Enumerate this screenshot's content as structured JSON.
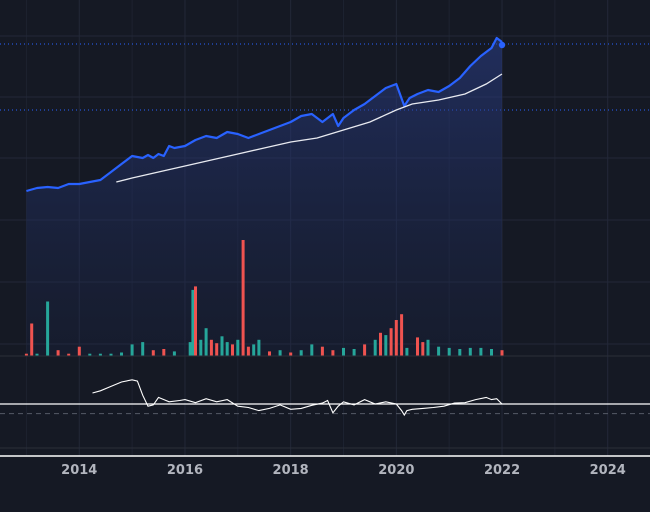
{
  "colors": {
    "background": "#151924",
    "grid": "#232838",
    "price_line": "#2962ff",
    "price_fill_top": "#2b3f8c",
    "moving_average": "#e8eaf0",
    "volume_up": "#26a69a",
    "volume_down": "#ef5350",
    "oscillator": "#ffffff",
    "axis_text": "#b2b5be"
  },
  "chart_data": {
    "type": "line",
    "x_axis": {
      "ticks": [
        "2014",
        "2016",
        "2018",
        "2020",
        "2022",
        "2024"
      ],
      "range": [
        2012.5,
        2024.8
      ]
    },
    "grid": true,
    "legend": "none",
    "price": {
      "range": [
        0,
        100
      ],
      "reference_levels": [
        93,
        60
      ],
      "x": [
        2013.0,
        2013.2,
        2013.4,
        2013.6,
        2013.8,
        2014.0,
        2014.2,
        2014.4,
        2014.6,
        2014.8,
        2015.0,
        2015.2,
        2015.3,
        2015.4,
        2015.5,
        2015.6,
        2015.7,
        2015.8,
        2016.0,
        2016.2,
        2016.4,
        2016.6,
        2016.8,
        2017.0,
        2017.2,
        2017.4,
        2017.6,
        2017.8,
        2018.0,
        2018.2,
        2018.4,
        2018.6,
        2018.8,
        2018.9,
        2019.0,
        2019.2,
        2019.4,
        2019.6,
        2019.8,
        2020.0,
        2020.15,
        2020.25,
        2020.4,
        2020.6,
        2020.8,
        2021.0,
        2021.2,
        2021.4,
        2021.6,
        2021.8,
        2021.9,
        2022.0
      ],
      "values": [
        19.5,
        21,
        21.5,
        21,
        23,
        23,
        24,
        25,
        29,
        33,
        37,
        36,
        37.5,
        36,
        38,
        37,
        42,
        41,
        42,
        45,
        47,
        46,
        49,
        48,
        46,
        48,
        50,
        52,
        54,
        57,
        58,
        54,
        58,
        52,
        56,
        60,
        63,
        67,
        71,
        73,
        62,
        66,
        68,
        70,
        69,
        72,
        76,
        82,
        87,
        91,
        96,
        94
      ]
    },
    "moving_average": {
      "x": [
        2014.7,
        2015.0,
        2015.5,
        2016.0,
        2016.5,
        2017.0,
        2017.5,
        2018.0,
        2018.5,
        2019.0,
        2019.5,
        2020.0,
        2020.3,
        2020.8,
        2021.3,
        2021.7,
        2022.0
      ],
      "values": [
        24,
        26,
        29,
        32,
        35,
        38,
        41,
        44,
        46,
        50,
        54,
        60,
        63,
        65,
        68,
        73,
        78
      ]
    },
    "volume": {
      "range": [
        0,
        100
      ],
      "x": [
        2013.0,
        2013.1,
        2013.2,
        2013.4,
        2013.6,
        2013.8,
        2014.0,
        2014.2,
        2014.4,
        2014.6,
        2014.8,
        2015.0,
        2015.2,
        2015.4,
        2015.6,
        2015.8,
        2016.1,
        2016.15,
        2016.2,
        2016.3,
        2016.4,
        2016.5,
        2016.6,
        2016.7,
        2016.8,
        2016.9,
        2017.0,
        2017.1,
        2017.2,
        2017.3,
        2017.4,
        2017.6,
        2017.8,
        2018.0,
        2018.2,
        2018.4,
        2018.6,
        2018.8,
        2019.0,
        2019.2,
        2019.4,
        2019.6,
        2019.7,
        2019.8,
        2019.9,
        2020.0,
        2020.1,
        2020.2,
        2020.4,
        2020.5,
        2020.6,
        2020.8,
        2021.0,
        2021.2,
        2021.4,
        2021.6,
        2021.8,
        2022.0
      ],
      "values": [
        2,
        28,
        2,
        47,
        5,
        2,
        8,
        2,
        2,
        2,
        3,
        10,
        12,
        5,
        6,
        4,
        12,
        57,
        60,
        14,
        24,
        14,
        11,
        17,
        12,
        10,
        14,
        100,
        8,
        10,
        14,
        4,
        5,
        3,
        5,
        10,
        8,
        5,
        7,
        6,
        10,
        14,
        20,
        18,
        24,
        31,
        36,
        7,
        16,
        12,
        14,
        8,
        7,
        6,
        7,
        7,
        6,
        5
      ],
      "direction": [
        "down",
        "down",
        "up",
        "up",
        "down",
        "down",
        "down",
        "up",
        "up",
        "up",
        "up",
        "up",
        "up",
        "down",
        "down",
        "up",
        "up",
        "up",
        "down",
        "up",
        "up",
        "down",
        "down",
        "up",
        "up",
        "down",
        "up",
        "down",
        "down",
        "up",
        "up",
        "down",
        "up",
        "down",
        "up",
        "up",
        "down",
        "down",
        "up",
        "up",
        "down",
        "up",
        "down",
        "up",
        "down",
        "down",
        "down",
        "up",
        "down",
        "down",
        "up",
        "up",
        "up",
        "up",
        "up",
        "up",
        "up",
        "down"
      ]
    },
    "oscillator": {
      "range": [
        -100,
        100
      ],
      "zero_line": 0,
      "reference_level": -22,
      "x": [
        2014.25,
        2014.4,
        2014.6,
        2014.8,
        2015.0,
        2015.1,
        2015.2,
        2015.3,
        2015.4,
        2015.5,
        2015.7,
        2015.9,
        2016.0,
        2016.2,
        2016.4,
        2016.6,
        2016.8,
        2017.0,
        2017.2,
        2017.4,
        2017.6,
        2017.8,
        2018.0,
        2018.2,
        2018.4,
        2018.6,
        2018.7,
        2018.8,
        2018.9,
        2019.0,
        2019.2,
        2019.4,
        2019.6,
        2019.8,
        2020.0,
        2020.1,
        2020.15,
        2020.2,
        2020.3,
        2020.5,
        2020.7,
        2020.9,
        2021.1,
        2021.3,
        2021.5,
        2021.7,
        2021.8,
        2021.9,
        2022.0
      ],
      "values": [
        25,
        30,
        40,
        50,
        55,
        52,
        20,
        -5,
        -2,
        15,
        5,
        8,
        10,
        3,
        12,
        5,
        10,
        -5,
        -8,
        -15,
        -10,
        -2,
        -12,
        -10,
        -3,
        2,
        8,
        -20,
        -5,
        5,
        -2,
        10,
        0,
        5,
        0,
        -15,
        -25,
        -15,
        -12,
        -10,
        -8,
        -5,
        2,
        3,
        10,
        15,
        10,
        12,
        0
      ]
    }
  }
}
